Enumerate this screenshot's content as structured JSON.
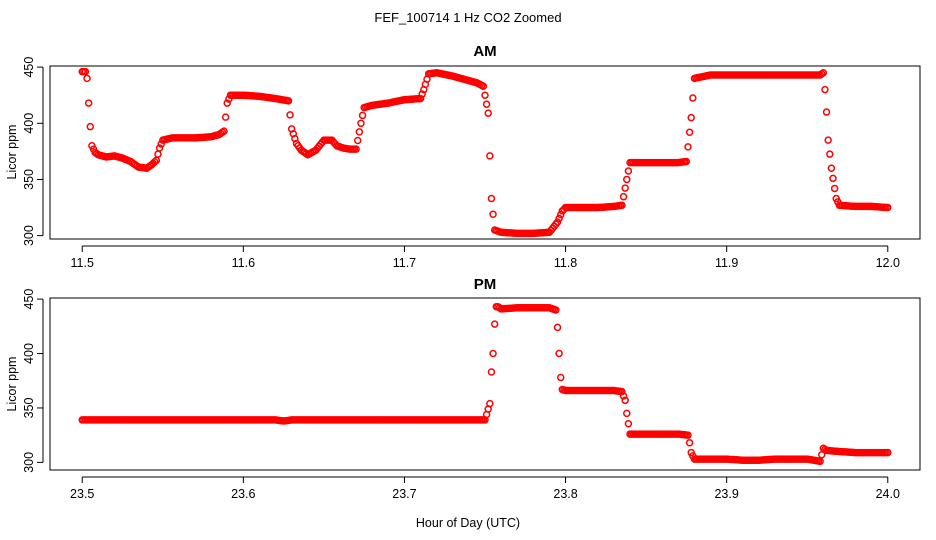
{
  "chart_data": {
    "type": "scatter",
    "title": "FEF_100714  1 Hz CO2 Zoomed",
    "xlabel": "Hour of Day (UTC)",
    "marker_color": "#ff0000",
    "panels": [
      {
        "title": "AM",
        "ylabel": "Licor ppm",
        "xlim": [
          11.48,
          12.02
        ],
        "ylim": [
          297,
          451
        ],
        "xticks": [
          "11.5",
          "11.6",
          "11.7",
          "11.8",
          "11.9",
          "12.0"
        ],
        "yticks": [
          "300",
          "350",
          "400",
          "450"
        ],
        "series": [
          {
            "x": [
              11.5,
              11.502,
              11.503,
              11.504,
              11.505,
              11.506,
              11.508,
              11.51,
              11.515,
              11.52,
              11.525,
              11.53,
              11.535,
              11.54,
              11.543,
              11.546,
              11.548,
              11.55,
              11.553,
              11.556,
              11.56,
              11.57,
              11.58,
              11.585,
              11.588,
              11.59,
              11.592,
              11.6,
              11.61,
              11.62,
              11.628,
              11.63,
              11.633,
              11.636,
              11.64,
              11.645,
              11.65,
              11.655,
              11.658,
              11.662,
              11.666,
              11.67,
              11.673,
              11.675,
              11.68,
              11.69,
              11.7,
              11.71,
              11.712,
              11.715,
              11.72,
              11.73,
              11.74,
              11.745,
              11.749,
              11.752,
              11.754,
              11.756,
              11.76,
              11.77,
              11.78,
              11.79,
              11.795,
              11.798,
              11.8,
              11.81,
              11.82,
              11.83,
              11.835,
              11.838,
              11.84,
              11.85,
              11.86,
              11.87,
              11.875,
              11.878,
              11.88,
              11.89,
              11.9,
              11.91,
              11.92,
              11.93,
              11.94,
              11.95,
              11.958,
              11.96,
              11.961,
              11.962,
              11.963,
              11.965,
              11.968,
              11.97,
              11.98,
              11.99,
              12.0
            ],
            "y": [
              446,
              446,
              440,
              418,
              397,
              380,
              374,
              372,
              370,
              371,
              369,
              366,
              361,
              360,
              363,
              367,
              378,
              385,
              386,
              387,
              387,
              387,
              388,
              390,
              393,
              418,
              425,
              425,
              424,
              422,
              420,
              395,
              382,
              376,
              372,
              376,
              385,
              385,
              380,
              378,
              377,
              377,
              400,
              414,
              416,
              418,
              421,
              422,
              430,
              444,
              445,
              442,
              438,
              436,
              433,
              409,
              333,
              305,
              303,
              302,
              302,
              303,
              312,
              322,
              325,
              325,
              325,
              326,
              327,
              350,
              365,
              365,
              365,
              365,
              366,
              405,
              440,
              443,
              443,
              443,
              443,
              443,
              443,
              443,
              443,
              445,
              430,
              410,
              385,
              360,
              333,
              327,
              326,
              326,
              325
            ]
          }
        ]
      },
      {
        "title": "PM",
        "ylabel": "Licor ppm",
        "xlim": [
          23.48,
          24.02
        ],
        "ylim": [
          293,
          451
        ],
        "xticks": [
          "23.5",
          "23.6",
          "23.7",
          "23.8",
          "23.9",
          "24.0"
        ],
        "yticks": [
          "300",
          "350",
          "400",
          "450"
        ],
        "series": [
          {
            "x": [
              23.5,
              23.52,
              23.54,
              23.56,
              23.58,
              23.6,
              23.62,
              23.625,
              23.63,
              23.65,
              23.67,
              23.69,
              23.7,
              23.72,
              23.74,
              23.75,
              23.753,
              23.754,
              23.755,
              23.756,
              23.757,
              23.758,
              23.76,
              23.77,
              23.78,
              23.79,
              23.794,
              23.795,
              23.796,
              23.797,
              23.798,
              23.8,
              23.81,
              23.82,
              23.83,
              23.835,
              23.837,
              23.838,
              23.84,
              23.85,
              23.86,
              23.87,
              23.876,
              23.877,
              23.878,
              23.88,
              23.89,
              23.9,
              23.91,
              23.92,
              23.93,
              23.94,
              23.95,
              23.958,
              23.96,
              23.962,
              23.97,
              23.98,
              23.99,
              24.0
            ],
            "y": [
              339,
              339,
              339,
              339,
              339,
              339,
              339,
              338,
              339,
              339,
              339,
              339,
              339,
              339,
              339,
              339,
              354,
              383,
              400,
              427,
              443,
              443,
              441,
              442,
              442,
              442,
              440,
              424,
              400,
              378,
              367,
              366,
              366,
              366,
              366,
              365,
              357,
              345,
              326,
              326,
              326,
              326,
              325,
              318,
              309,
              303,
              303,
              303,
              302,
              302,
              303,
              303,
              303,
              301,
              313,
              311,
              310,
              309,
              309,
              309
            ]
          }
        ]
      }
    ]
  }
}
